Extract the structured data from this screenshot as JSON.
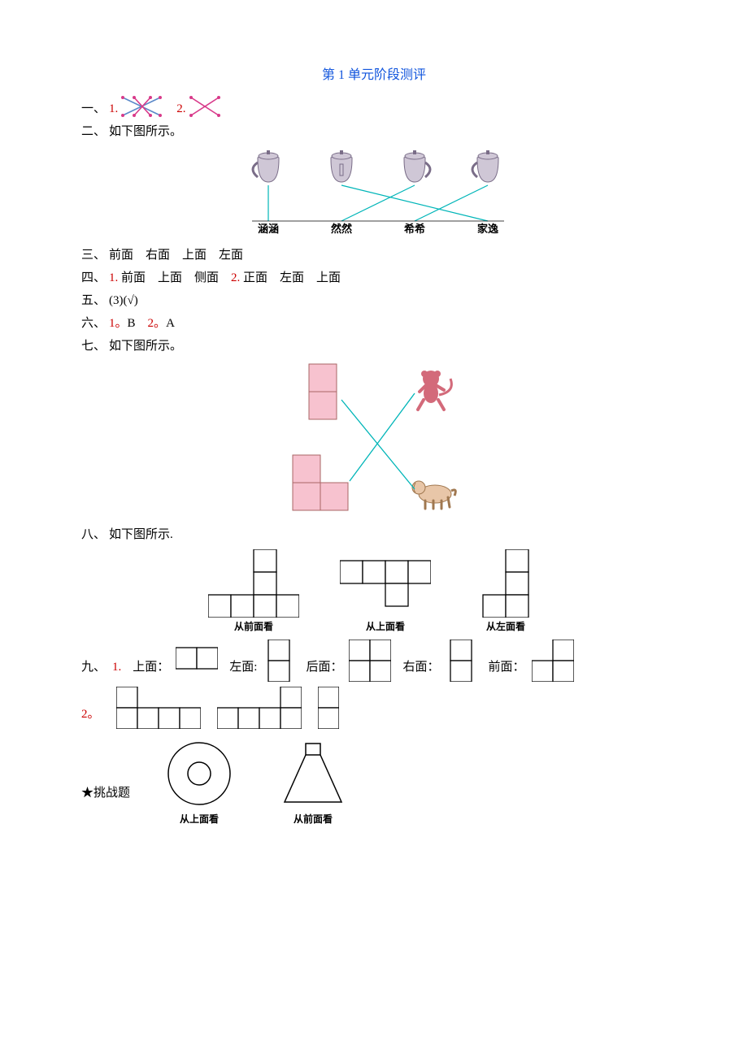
{
  "title": "第 1 单元阶段测评",
  "colors": {
    "title": "#1155dd",
    "red": "#cc0000",
    "cyanLine": "#00b5b8",
    "pinkFill": "#f7c2cf",
    "cupFill": "#cfc7d6",
    "cupStroke": "#7a6d88",
    "monkeyFill": "#d36a7a",
    "dogFill": "#e8c6a8",
    "dogStroke": "#a07850",
    "black": "#000000",
    "crossA1": "#d83a8a",
    "crossA2": "#5a88c8",
    "crossB": "#d83a8a"
  },
  "q1": {
    "prefix": "一、",
    "items": [
      "1.",
      "2."
    ]
  },
  "q2": {
    "prefix": "二、",
    "text": "如下图所示。",
    "names": [
      "涵涵",
      "然然",
      "希希",
      "家逸"
    ],
    "cupHandles": [
      "left",
      "none",
      "right",
      "left"
    ],
    "edges": [
      [
        0,
        0
      ],
      [
        1,
        3
      ],
      [
        2,
        1
      ],
      [
        3,
        2
      ]
    ]
  },
  "q3": {
    "prefix": "三、",
    "answers": [
      "前面",
      "右面",
      "上面",
      "左面"
    ]
  },
  "q4": {
    "prefix": "四、",
    "parts": [
      {
        "num": "1.",
        "answers": [
          "前面",
          "上面",
          "侧面"
        ]
      },
      {
        "num": "2.",
        "answers": [
          "正面",
          "左面",
          "上面"
        ]
      }
    ]
  },
  "q5": {
    "prefix": "五、",
    "text": "(3)(√)"
  },
  "q6": {
    "prefix": "六、",
    "items": [
      [
        "1。",
        "B"
      ],
      [
        "2。",
        "A"
      ]
    ]
  },
  "q7": {
    "prefix": "七、",
    "text": "如下图所示。"
  },
  "q8": {
    "prefix": "八、",
    "text": "如下图所示.",
    "views": [
      {
        "label": "从前面看",
        "cell": 28,
        "cols": 4,
        "rows": 3,
        "ox": 0,
        "oy": 0,
        "cells": [
          [
            2,
            0
          ],
          [
            2,
            1
          ],
          [
            0,
            2
          ],
          [
            1,
            2
          ],
          [
            2,
            2
          ],
          [
            3,
            2
          ]
        ]
      },
      {
        "label": "从上面看",
        "cell": 28,
        "cols": 4,
        "rows": 2,
        "ox": 0,
        "oy": 14,
        "cells": [
          [
            0,
            0
          ],
          [
            1,
            0
          ],
          [
            2,
            0
          ],
          [
            3,
            0
          ],
          [
            2,
            1
          ]
        ]
      },
      {
        "label": "从左面看",
        "cell": 28,
        "cols": 2,
        "rows": 3,
        "ox": 14,
        "oy": 0,
        "cells": [
          [
            1,
            0
          ],
          [
            1,
            1
          ],
          [
            0,
            2
          ],
          [
            1,
            2
          ]
        ]
      }
    ]
  },
  "q9": {
    "prefix": "九、",
    "part1": {
      "num": "1.",
      "items": [
        {
          "label": "上面：",
          "cell": 26,
          "cols": 2,
          "rows": 1,
          "ox": 0,
          "oy": 16,
          "cells": [
            [
              0,
              0
            ],
            [
              1,
              0
            ]
          ]
        },
        {
          "label": "左面:",
          "cell": 26,
          "cols": 1,
          "rows": 2,
          "ox": 6,
          "oy": 0,
          "cells": [
            [
              0,
              0
            ],
            [
              0,
              1
            ]
          ]
        },
        {
          "label": "后面：",
          "cell": 26,
          "cols": 2,
          "rows": 2,
          "ox": 0,
          "oy": 0,
          "cells": [
            [
              0,
              0
            ],
            [
              1,
              0
            ],
            [
              0,
              1
            ],
            [
              1,
              1
            ]
          ]
        },
        {
          "label": "右面：",
          "cell": 26,
          "cols": 1,
          "rows": 2,
          "ox": 6,
          "oy": 0,
          "cells": [
            [
              0,
              0
            ],
            [
              0,
              1
            ]
          ]
        },
        {
          "label": "前面：",
          "cell": 26,
          "cols": 2,
          "rows": 2,
          "ox": 0,
          "oy": 0,
          "cells": [
            [
              1,
              0
            ],
            [
              0,
              1
            ],
            [
              1,
              1
            ]
          ]
        }
      ]
    },
    "part2": {
      "num": "2。",
      "items": [
        {
          "cell": 26,
          "cols": 4,
          "rows": 2,
          "ox": 0,
          "oy": 0,
          "cells": [
            [
              0,
              0
            ],
            [
              0,
              1
            ],
            [
              1,
              1
            ],
            [
              2,
              1
            ],
            [
              3,
              1
            ]
          ]
        },
        {
          "cell": 26,
          "cols": 4,
          "rows": 2,
          "ox": 0,
          "oy": 0,
          "cells": [
            [
              3,
              0
            ],
            [
              0,
              1
            ],
            [
              1,
              1
            ],
            [
              2,
              1
            ],
            [
              3,
              1
            ]
          ]
        },
        {
          "cell": 26,
          "cols": 1,
          "rows": 2,
          "ox": 0,
          "oy": 0,
          "cells": [
            [
              0,
              0
            ],
            [
              0,
              1
            ]
          ]
        }
      ]
    }
  },
  "challenge": {
    "prefix": "★",
    "text": "挑战题",
    "items": [
      {
        "type": "donut",
        "label": "从上面看"
      },
      {
        "type": "cone",
        "label": "从前面看"
      }
    ]
  }
}
